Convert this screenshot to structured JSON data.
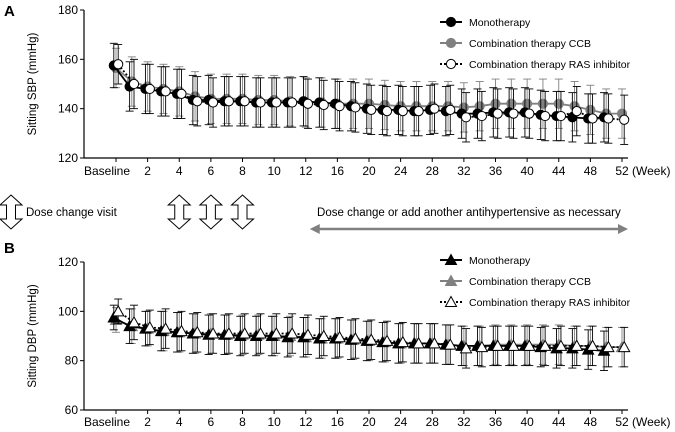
{
  "chart_data": [
    {
      "panel": "A",
      "type": "line",
      "ylabel": "Sitting SBP (mmHg)",
      "ylim": [
        120,
        180
      ],
      "yticks": [
        120,
        140,
        160,
        180
      ],
      "x_unit": "(Week)",
      "categories": [
        "Baseline",
        "1",
        "2",
        "3",
        "4",
        "5",
        "6",
        "7",
        "8",
        "9",
        "10",
        "11",
        "12",
        "14",
        "16",
        "18",
        "20",
        "22",
        "24",
        "26",
        "28",
        "30",
        "32",
        "34",
        "36",
        "38",
        "40",
        "42",
        "44",
        "46",
        "48",
        "50",
        "52"
      ],
      "tick_labels": [
        "Baseline",
        "2",
        "4",
        "6",
        "8",
        "10",
        "12",
        "16",
        "20",
        "24",
        "28",
        "32",
        "36",
        "40",
        "44",
        "48",
        "52"
      ],
      "series": [
        {
          "name": "Monotherapy",
          "marker": "circle-filled",
          "color": "#000000",
          "line": "solid",
          "values": [
            157.5,
            149,
            148,
            147,
            146,
            143.5,
            143.5,
            143,
            143,
            142.5,
            142.5,
            142.5,
            143,
            142.5,
            142,
            141,
            140,
            139.5,
            139.5,
            139,
            139.5,
            139,
            138,
            138,
            138.5,
            138.5,
            138.5,
            137.5,
            137,
            136.5,
            136,
            136.5,
            null
          ],
          "err": [
            9,
            10,
            10,
            10,
            10,
            10,
            10,
            10,
            10,
            10,
            10,
            10,
            10,
            10,
            10,
            10,
            10,
            10,
            10,
            10,
            10,
            10,
            10,
            10,
            10,
            10,
            10,
            10,
            10,
            10,
            10,
            10,
            null
          ]
        },
        {
          "name": "Combination therapy CCB",
          "marker": "circle-filled",
          "color": "#808080",
          "line": "solid",
          "values": [
            156.5,
            151,
            149,
            148,
            147,
            145,
            144,
            144,
            144,
            143.5,
            143.5,
            143,
            142.5,
            142.5,
            142,
            142,
            142,
            141.5,
            141,
            141,
            141,
            141,
            140.5,
            141,
            142,
            142,
            142,
            142,
            142,
            141,
            139.5,
            138,
            138
          ],
          "err": [
            8,
            10,
            10,
            10,
            10,
            10,
            10,
            10,
            10,
            10,
            10,
            10,
            10,
            10,
            10,
            10,
            10,
            10,
            10,
            10,
            10,
            10,
            10,
            10,
            10,
            10,
            10,
            10,
            10,
            10,
            10,
            10,
            10
          ]
        },
        {
          "name": "Combination therapy RAS inhibitor",
          "marker": "circle-open",
          "color": "#000000",
          "line": "dotted",
          "values": [
            158,
            150,
            148,
            147,
            146,
            143,
            142.5,
            143,
            143,
            142.5,
            142.5,
            142.5,
            142,
            141.5,
            141,
            140.5,
            139.5,
            139,
            139,
            139,
            140,
            139.5,
            136.5,
            137,
            138,
            138,
            138,
            137,
            137,
            139,
            136,
            136,
            135.5
          ],
          "err": [
            8,
            10,
            10,
            10,
            10,
            10,
            10,
            10,
            10,
            10,
            10,
            10,
            10,
            10,
            10,
            10,
            10,
            10,
            10,
            10,
            10,
            10,
            10,
            10,
            10,
            10,
            10,
            10,
            10,
            10,
            10,
            10,
            10
          ]
        }
      ]
    },
    {
      "panel": "B",
      "type": "line",
      "ylabel": "Sitting DBP (mmHg)",
      "ylim": [
        60,
        120
      ],
      "yticks": [
        60,
        80,
        100,
        120
      ],
      "x_unit": "(Week)",
      "categories": [
        "Baseline",
        "1",
        "2",
        "3",
        "4",
        "5",
        "6",
        "7",
        "8",
        "9",
        "10",
        "11",
        "12",
        "14",
        "16",
        "18",
        "20",
        "22",
        "24",
        "26",
        "28",
        "30",
        "32",
        "34",
        "36",
        "38",
        "40",
        "42",
        "44",
        "46",
        "48",
        "50",
        "52"
      ],
      "tick_labels": [
        "Baseline",
        "2",
        "4",
        "6",
        "8",
        "10",
        "12",
        "16",
        "20",
        "24",
        "28",
        "32",
        "36",
        "40",
        "44",
        "48",
        "52"
      ],
      "series": [
        {
          "name": "Monotherapy",
          "marker": "triangle-filled",
          "color": "#000000",
          "line": "solid",
          "values": [
            97.5,
            94,
            93,
            92,
            91.5,
            91,
            90.5,
            90.5,
            90,
            90,
            90,
            89.5,
            89.5,
            89,
            89,
            88.5,
            88,
            87.5,
            87,
            87,
            87,
            86.5,
            86,
            86,
            86,
            86,
            86,
            85.5,
            85,
            85,
            84.5,
            84,
            null
          ],
          "err": [
            5,
            7,
            7,
            8,
            8,
            8,
            8,
            8,
            8,
            8,
            8,
            8,
            8,
            8,
            8,
            8,
            8,
            8,
            8,
            8,
            8,
            8,
            8,
            8,
            8,
            8,
            8,
            8,
            8,
            8,
            8,
            8,
            null
          ]
        },
        {
          "name": "Combination therapy CCB",
          "marker": "triangle-filled",
          "color": "#808080",
          "line": "solid",
          "values": [
            96.5,
            94,
            93,
            92,
            91.5,
            91,
            91,
            90.5,
            90.5,
            90.5,
            90,
            90,
            89.5,
            89,
            89,
            88.5,
            88,
            87.5,
            87,
            87,
            87,
            86.5,
            86,
            86,
            86.5,
            86.5,
            86.5,
            86.5,
            86.5,
            86,
            86,
            85.5,
            85.5
          ],
          "err": [
            5,
            7,
            7,
            8,
            8,
            8,
            8,
            8,
            8,
            8,
            8,
            8,
            8,
            8,
            8,
            8,
            8,
            8,
            8,
            8,
            8,
            8,
            8,
            8,
            8,
            8,
            8,
            8,
            8,
            8,
            8,
            8,
            8
          ]
        },
        {
          "name": "Combination therapy RAS inhibitor",
          "marker": "triangle-open",
          "color": "#000000",
          "line": "dotted",
          "values": [
            100,
            95.5,
            93.5,
            93,
            92,
            91.5,
            91,
            91,
            91,
            91,
            91,
            91,
            90.5,
            90,
            89.5,
            89,
            88.5,
            88,
            87.5,
            87,
            87,
            86.5,
            85,
            85.5,
            86,
            86,
            86,
            86,
            86,
            86,
            86,
            85.5,
            85.5
          ],
          "err": [
            5,
            7,
            7,
            8,
            8,
            8,
            8,
            8,
            8,
            8,
            8,
            8,
            8,
            8,
            8,
            8,
            8,
            8,
            8,
            8,
            8,
            8,
            8,
            8,
            8,
            8,
            8,
            8,
            8,
            8,
            8,
            8,
            8
          ]
        }
      ]
    }
  ],
  "middle": {
    "dose_change_visit_label": "Dose change visit",
    "dose_change_weeks": [
      "2",
      "4",
      "6",
      "8"
    ],
    "dose_change_or_add_label": "Dose change or add another antihypertensive as necessary",
    "range_weeks": [
      "12",
      "52"
    ]
  }
}
